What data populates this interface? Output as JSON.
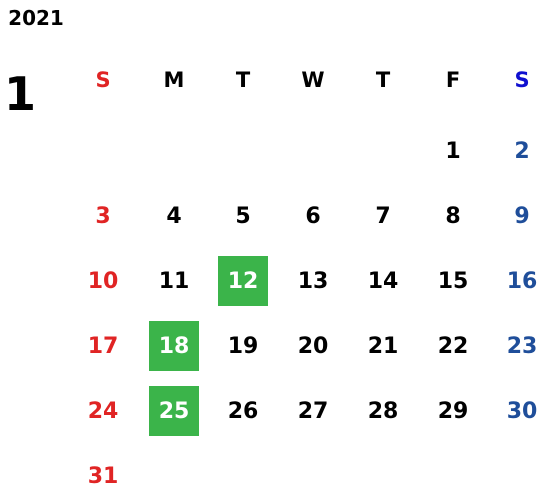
{
  "year": "2021",
  "month": "1",
  "weekdays": [
    "S",
    "M",
    "T",
    "W",
    "T",
    "F",
    "S"
  ],
  "weeks": [
    [
      null,
      null,
      null,
      null,
      null,
      "1",
      "2"
    ],
    [
      "3",
      "4",
      "5",
      "6",
      "7",
      "8",
      "9"
    ],
    [
      "10",
      "11",
      "12",
      "13",
      "14",
      "15",
      "16"
    ],
    [
      "17",
      "18",
      "19",
      "20",
      "21",
      "22",
      "23"
    ],
    [
      "24",
      "25",
      "26",
      "27",
      "28",
      "29",
      "30"
    ],
    [
      "31",
      null,
      null,
      null,
      null,
      null,
      null
    ]
  ],
  "highlighted_days": [
    "12",
    "18",
    "25"
  ],
  "highlight_color": "#3bb44a",
  "sunday_color": "#e02424",
  "saturday_header_color": "#1010d0",
  "saturday_color": "#1f4e9a",
  "weekday_color": "#000000"
}
